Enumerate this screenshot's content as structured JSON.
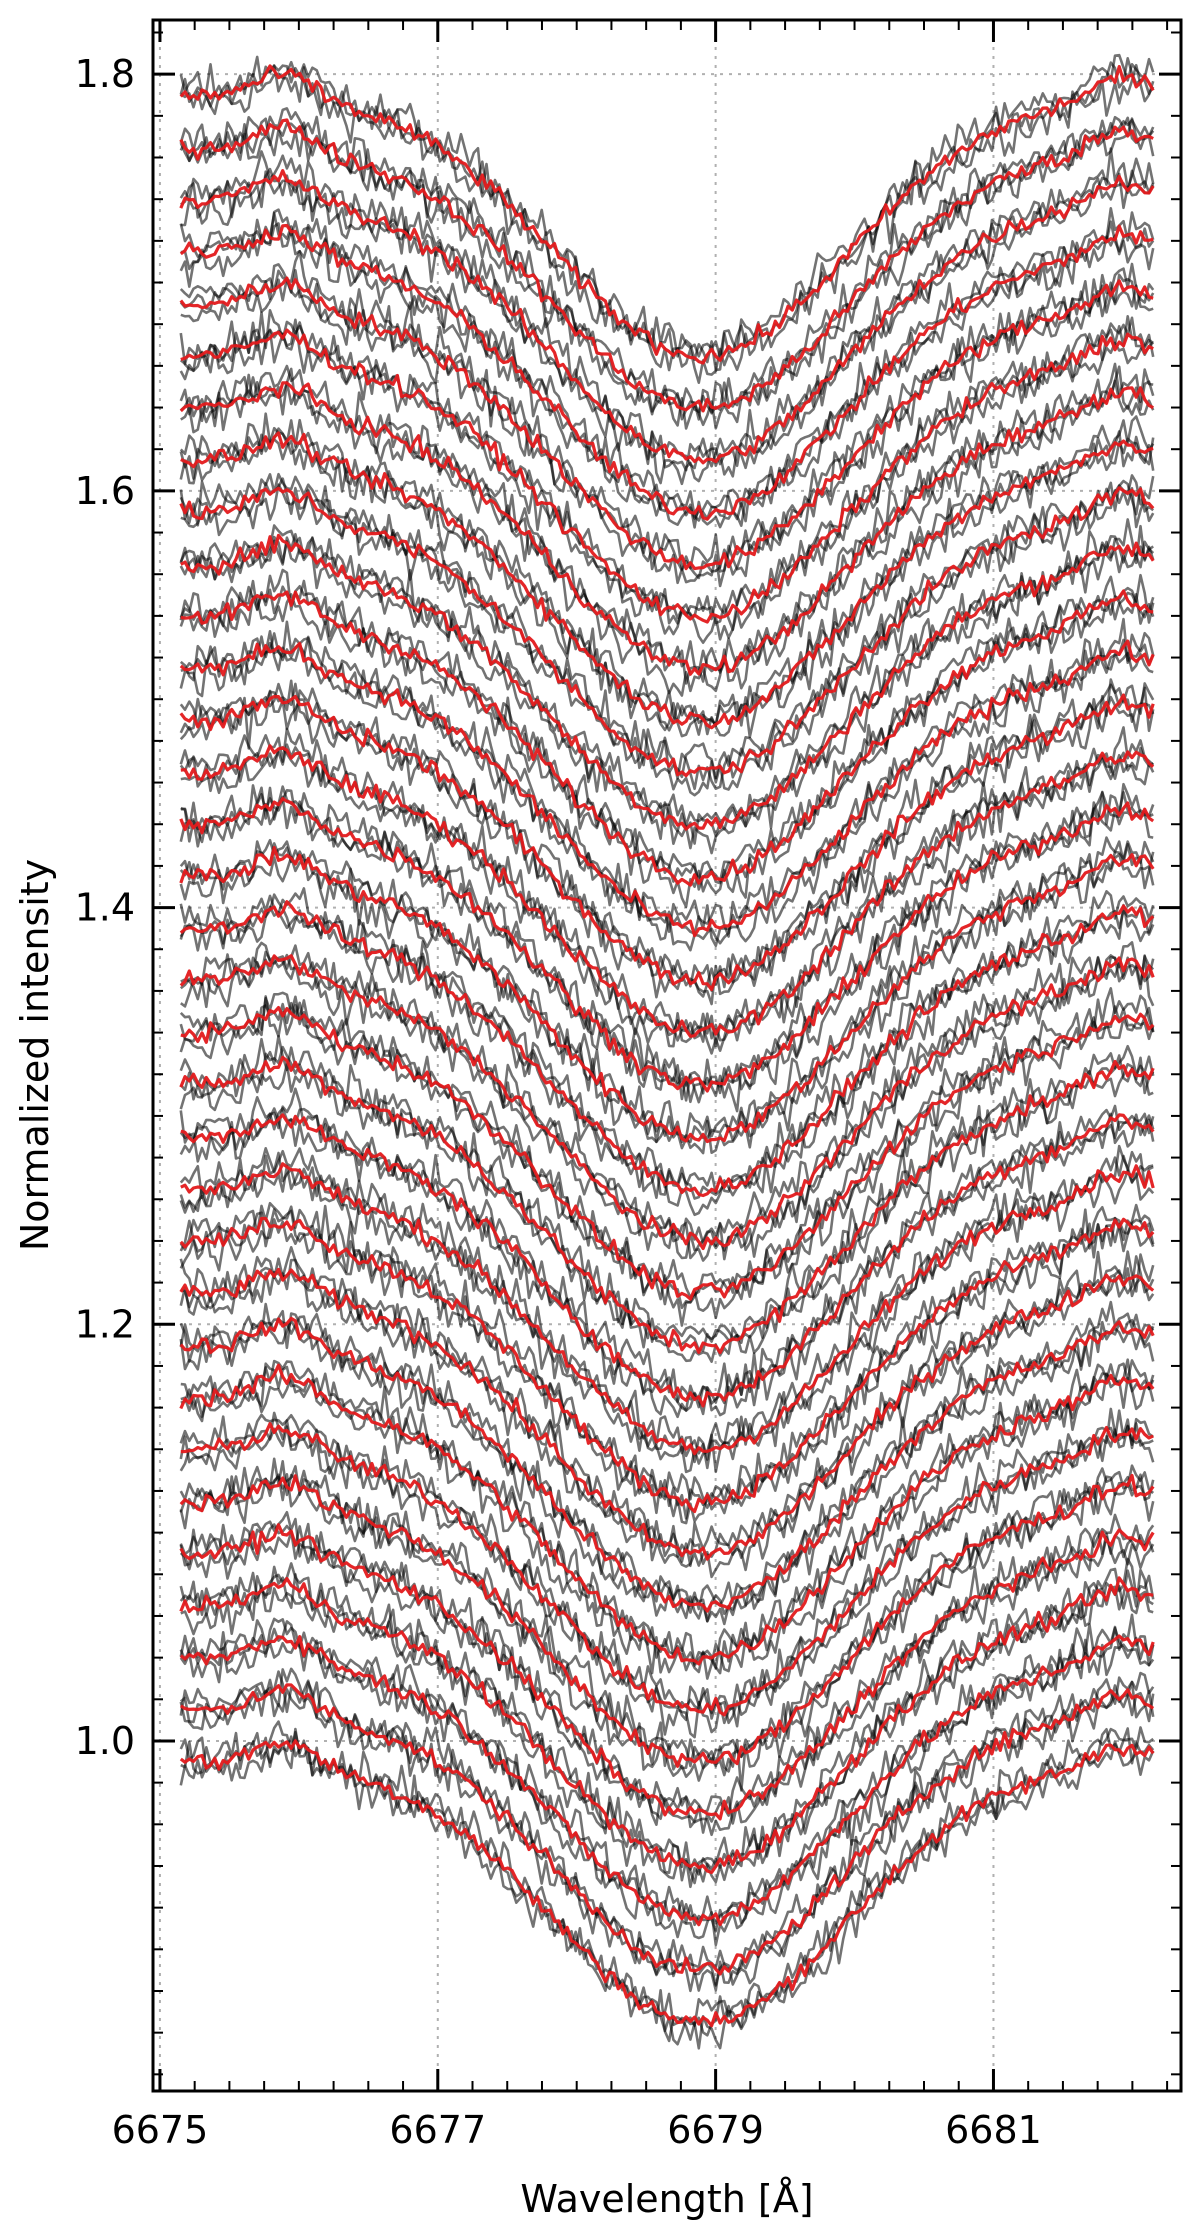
{
  "chart_data": {
    "type": "line",
    "title": "",
    "xlabel": "Wavelength [Å]",
    "ylabel": "Normalized intensity",
    "xlim": [
      6674.95,
      6682.35
    ],
    "ylim": [
      0.832,
      1.826
    ],
    "x_ticks": [
      6675,
      6677,
      6679,
      6681
    ],
    "x_tick_labels": [
      "6675",
      "6677",
      "6679",
      "6681"
    ],
    "y_ticks": [
      1.0,
      1.2,
      1.4,
      1.6,
      1.8
    ],
    "y_tick_labels": [
      "1.0",
      "1.2",
      "1.4",
      "1.6",
      "1.8"
    ],
    "grid": true,
    "legend": "none",
    "line_profile": {
      "x_start": 6675.15,
      "x_end": 6682.15,
      "center": 6678.9,
      "width": 1.5,
      "depth": 0.125,
      "blue_bump_center": 6675.9,
      "blue_bump_width": 0.3,
      "blue_bump_height": 0.012,
      "red_bump_center": 6681.9,
      "red_bump_width": 0.3,
      "red_bump_height": 0.01
    },
    "series_groups": [
      {
        "name": "",
        "color": "#000000",
        "opacity": 0.55,
        "traces_per_offset": 3,
        "noise": 0.009
      },
      {
        "name": "",
        "color": "#e31a1c",
        "opacity": 0.95,
        "traces_per_offset": 1,
        "noise": 0.004
      }
    ],
    "continuum_offsets": [
      1.79,
      1.765,
      1.74,
      1.715,
      1.69,
      1.665,
      1.64,
      1.615,
      1.59,
      1.565,
      1.54,
      1.515,
      1.49,
      1.465,
      1.44,
      1.415,
      1.39,
      1.365,
      1.34,
      1.315,
      1.29,
      1.265,
      1.24,
      1.215,
      1.19,
      1.165,
      1.14,
      1.115,
      1.09,
      1.065,
      1.04,
      1.015,
      0.99
    ]
  },
  "colors": {
    "axes": "#000000",
    "grid": "#b0b0b0",
    "observed": "#000000",
    "model": "#e31a1c"
  }
}
